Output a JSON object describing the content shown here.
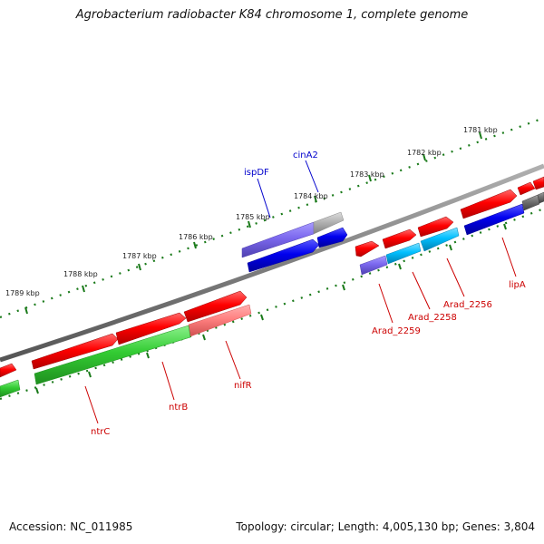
{
  "title": "Agrobacterium radiobacter K84 chromosome 1, complete genome",
  "footer": {
    "accession": "Accession: NC_011985",
    "topology": "Topology: circular; Length: 4,005,130 bp; Genes: 3,804"
  },
  "colors": {
    "backbone": "#808080",
    "tick": "#1a7a1a",
    "forward_gene": "#ff0000",
    "reverse_gene": "#0000ee",
    "rna_like": "#7b68ee",
    "green_gene": "#33cc33",
    "cyan_gene": "#00bfff",
    "grey_gene": "#b3b3b3",
    "pink_gene": "#ff8080",
    "label_blue": "#0000cc",
    "label_red": "#cc0000"
  },
  "scale_labels": [
    "1781 kbp",
    "1782 kbp",
    "1783 kbp",
    "1784 kbp",
    "1785 kbp",
    "1786 kbp",
    "1787 kbp",
    "1788 kbp",
    "1789 kbp"
  ],
  "gene_labels": [
    {
      "id": "ispDF",
      "text": "ispDF",
      "color": "blue"
    },
    {
      "id": "cinA2",
      "text": "cinA2",
      "color": "blue"
    },
    {
      "id": "lipA",
      "text": "lipA",
      "color": "red"
    },
    {
      "id": "Arad_2256",
      "text": "Arad_2256",
      "color": "red"
    },
    {
      "id": "Arad_2258",
      "text": "Arad_2258",
      "color": "red"
    },
    {
      "id": "Arad_2259",
      "text": "Arad_2259",
      "color": "red"
    },
    {
      "id": "nifR",
      "text": "nifR",
      "color": "red"
    },
    {
      "id": "ntrB",
      "text": "ntrB",
      "color": "red"
    },
    {
      "id": "ntrC",
      "text": "ntrC",
      "color": "red"
    }
  ]
}
